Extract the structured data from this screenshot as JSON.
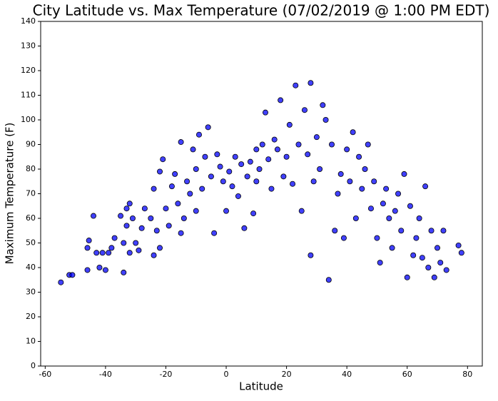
{
  "chart_data": {
    "type": "scatter",
    "title": "City Latitude vs. Max Temperature (07/02/2019 @ 1:00 PM EDT)",
    "x_label": "Latitude",
    "y_label": "Maximum Temperature (F)",
    "color": "#0000ff",
    "xlim": [
      -61.5,
      84.9
    ],
    "ylim": [
      0,
      140
    ],
    "xticks": [
      -60,
      -40,
      -20,
      0,
      20,
      40,
      60,
      80
    ],
    "yticks": [
      0,
      10,
      20,
      30,
      40,
      50,
      60,
      70,
      80,
      90,
      100,
      110,
      120,
      130,
      140
    ],
    "x": [
      -54.8,
      -52,
      -51,
      -46,
      -46,
      -45.5,
      -44,
      -43,
      -42,
      -41,
      -40,
      -39,
      -38,
      -37,
      -35,
      -34,
      -34,
      -33,
      -33,
      -32,
      -32,
      -31,
      -30,
      -29,
      -28,
      -27,
      -25,
      -24,
      -24,
      -23,
      -22,
      -22,
      -21,
      -20,
      -19,
      -18,
      -17,
      -16,
      -15,
      -15,
      -14,
      -13,
      -12,
      -11,
      -10,
      -10,
      -9,
      -8,
      -7,
      -6,
      -5,
      -4,
      -3,
      -2,
      -1,
      0,
      1,
      2,
      3,
      4,
      5,
      6,
      7,
      8,
      9,
      10,
      10,
      11,
      12,
      13,
      14,
      15,
      16,
      17,
      18,
      19,
      20,
      21,
      22,
      23,
      24,
      25,
      26,
      27,
      28,
      28,
      29,
      30,
      31,
      32,
      33,
      34,
      35,
      36,
      37,
      38,
      39,
      40,
      41,
      42,
      43,
      44,
      45,
      46,
      47,
      48,
      49,
      50,
      51,
      52,
      53,
      54,
      55,
      56,
      57,
      58,
      59,
      60,
      61,
      62,
      63,
      64,
      65,
      66,
      67,
      68,
      69,
      70,
      71,
      72,
      73,
      77,
      78
    ],
    "y": [
      34,
      37,
      37,
      39,
      48,
      51,
      61,
      46,
      40,
      46,
      39,
      46,
      48,
      52,
      61,
      38,
      50,
      57,
      64,
      66,
      46,
      60,
      50,
      47,
      56,
      64,
      60,
      45,
      72,
      55,
      79,
      48,
      84,
      64,
      57,
      73,
      78,
      66,
      91,
      54,
      60,
      75,
      70,
      88,
      80,
      63,
      94,
      72,
      85,
      97,
      77,
      54,
      86,
      81,
      75,
      63,
      79,
      73,
      85,
      69,
      82,
      56,
      77,
      83,
      62,
      88,
      75,
      80,
      90,
      103,
      84,
      72,
      92,
      88,
      108,
      77,
      85,
      98,
      74,
      114,
      90,
      63,
      104,
      86,
      115,
      45,
      75,
      93,
      80,
      106,
      100,
      35,
      90,
      55,
      70,
      78,
      52,
      88,
      75,
      95,
      60,
      85,
      72,
      80,
      90,
      64,
      75,
      52,
      42,
      66,
      72,
      60,
      48,
      63,
      70,
      55,
      78,
      36,
      65,
      45,
      52,
      60,
      44,
      73,
      40,
      55,
      36,
      48,
      42,
      55,
      39,
      49,
      46
    ]
  }
}
